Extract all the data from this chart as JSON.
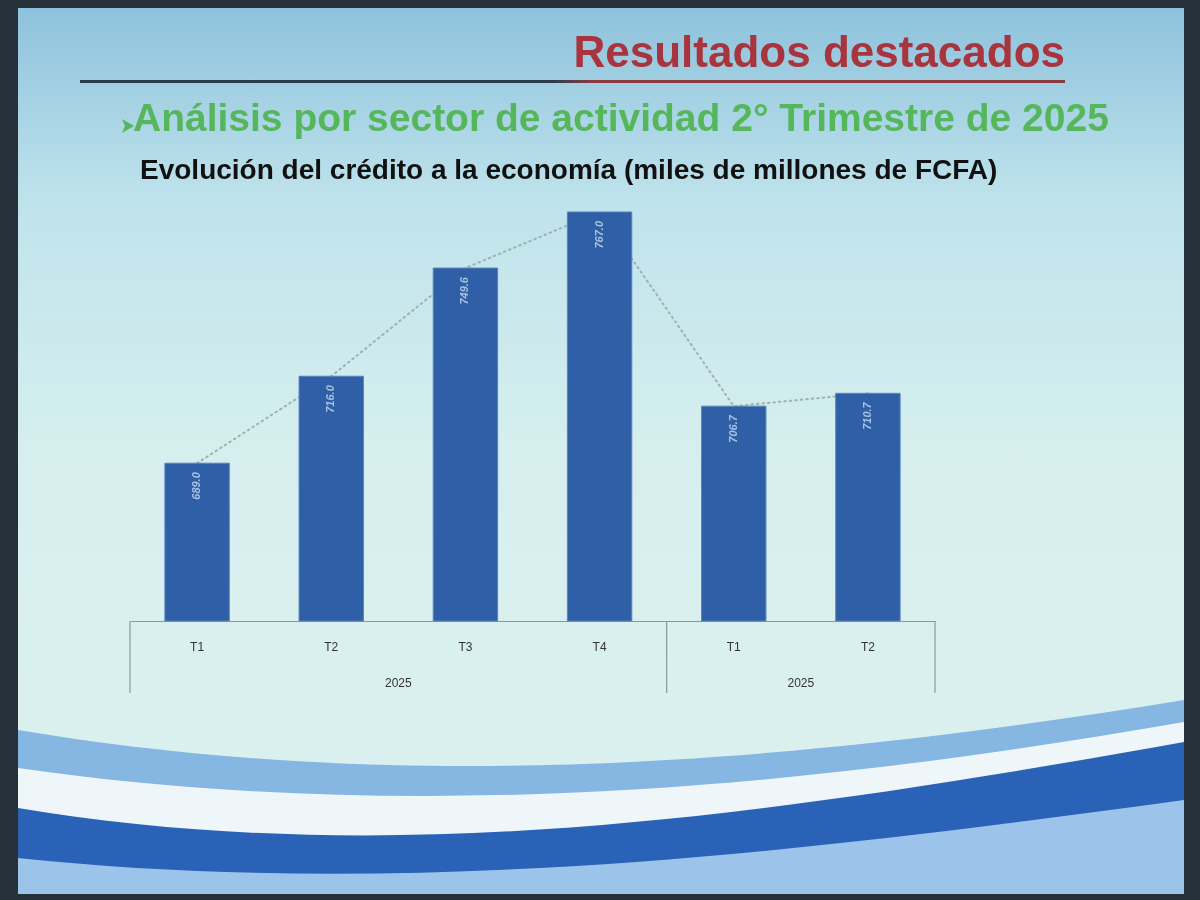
{
  "chart_data": {
    "type": "bar",
    "title": "Evolución del crédito a la economía (miles de millones de FCFA)",
    "subtitle": "Análisis por sector de actividad 2° Trimestre de 2025",
    "annotations": [
      "Resultados destacados",
      "2025",
      "2025"
    ],
    "categories": [
      "T1",
      "T2",
      "T3",
      "T4",
      "T1",
      "T2"
    ],
    "series": [
      {
        "color": "#2f5fa6",
        "values": [
          689.0,
          716.0,
          749.6,
          767.0,
          706.7,
          710.7
        ],
        "value_labels": [
          "689.0",
          "716.0",
          "749.6",
          "767.0",
          "706.7",
          "710.7"
        ]
      },
      {
        "type": "line",
        "color": "#a3aeb0",
        "values": [
          689.0,
          716.0,
          749.6,
          767.0,
          706.7,
          710.7
        ]
      }
    ],
    "line_style": "dotted",
    "ylim": [
      640,
      767.0
    ],
    "tick_labels": "x"
  }
}
